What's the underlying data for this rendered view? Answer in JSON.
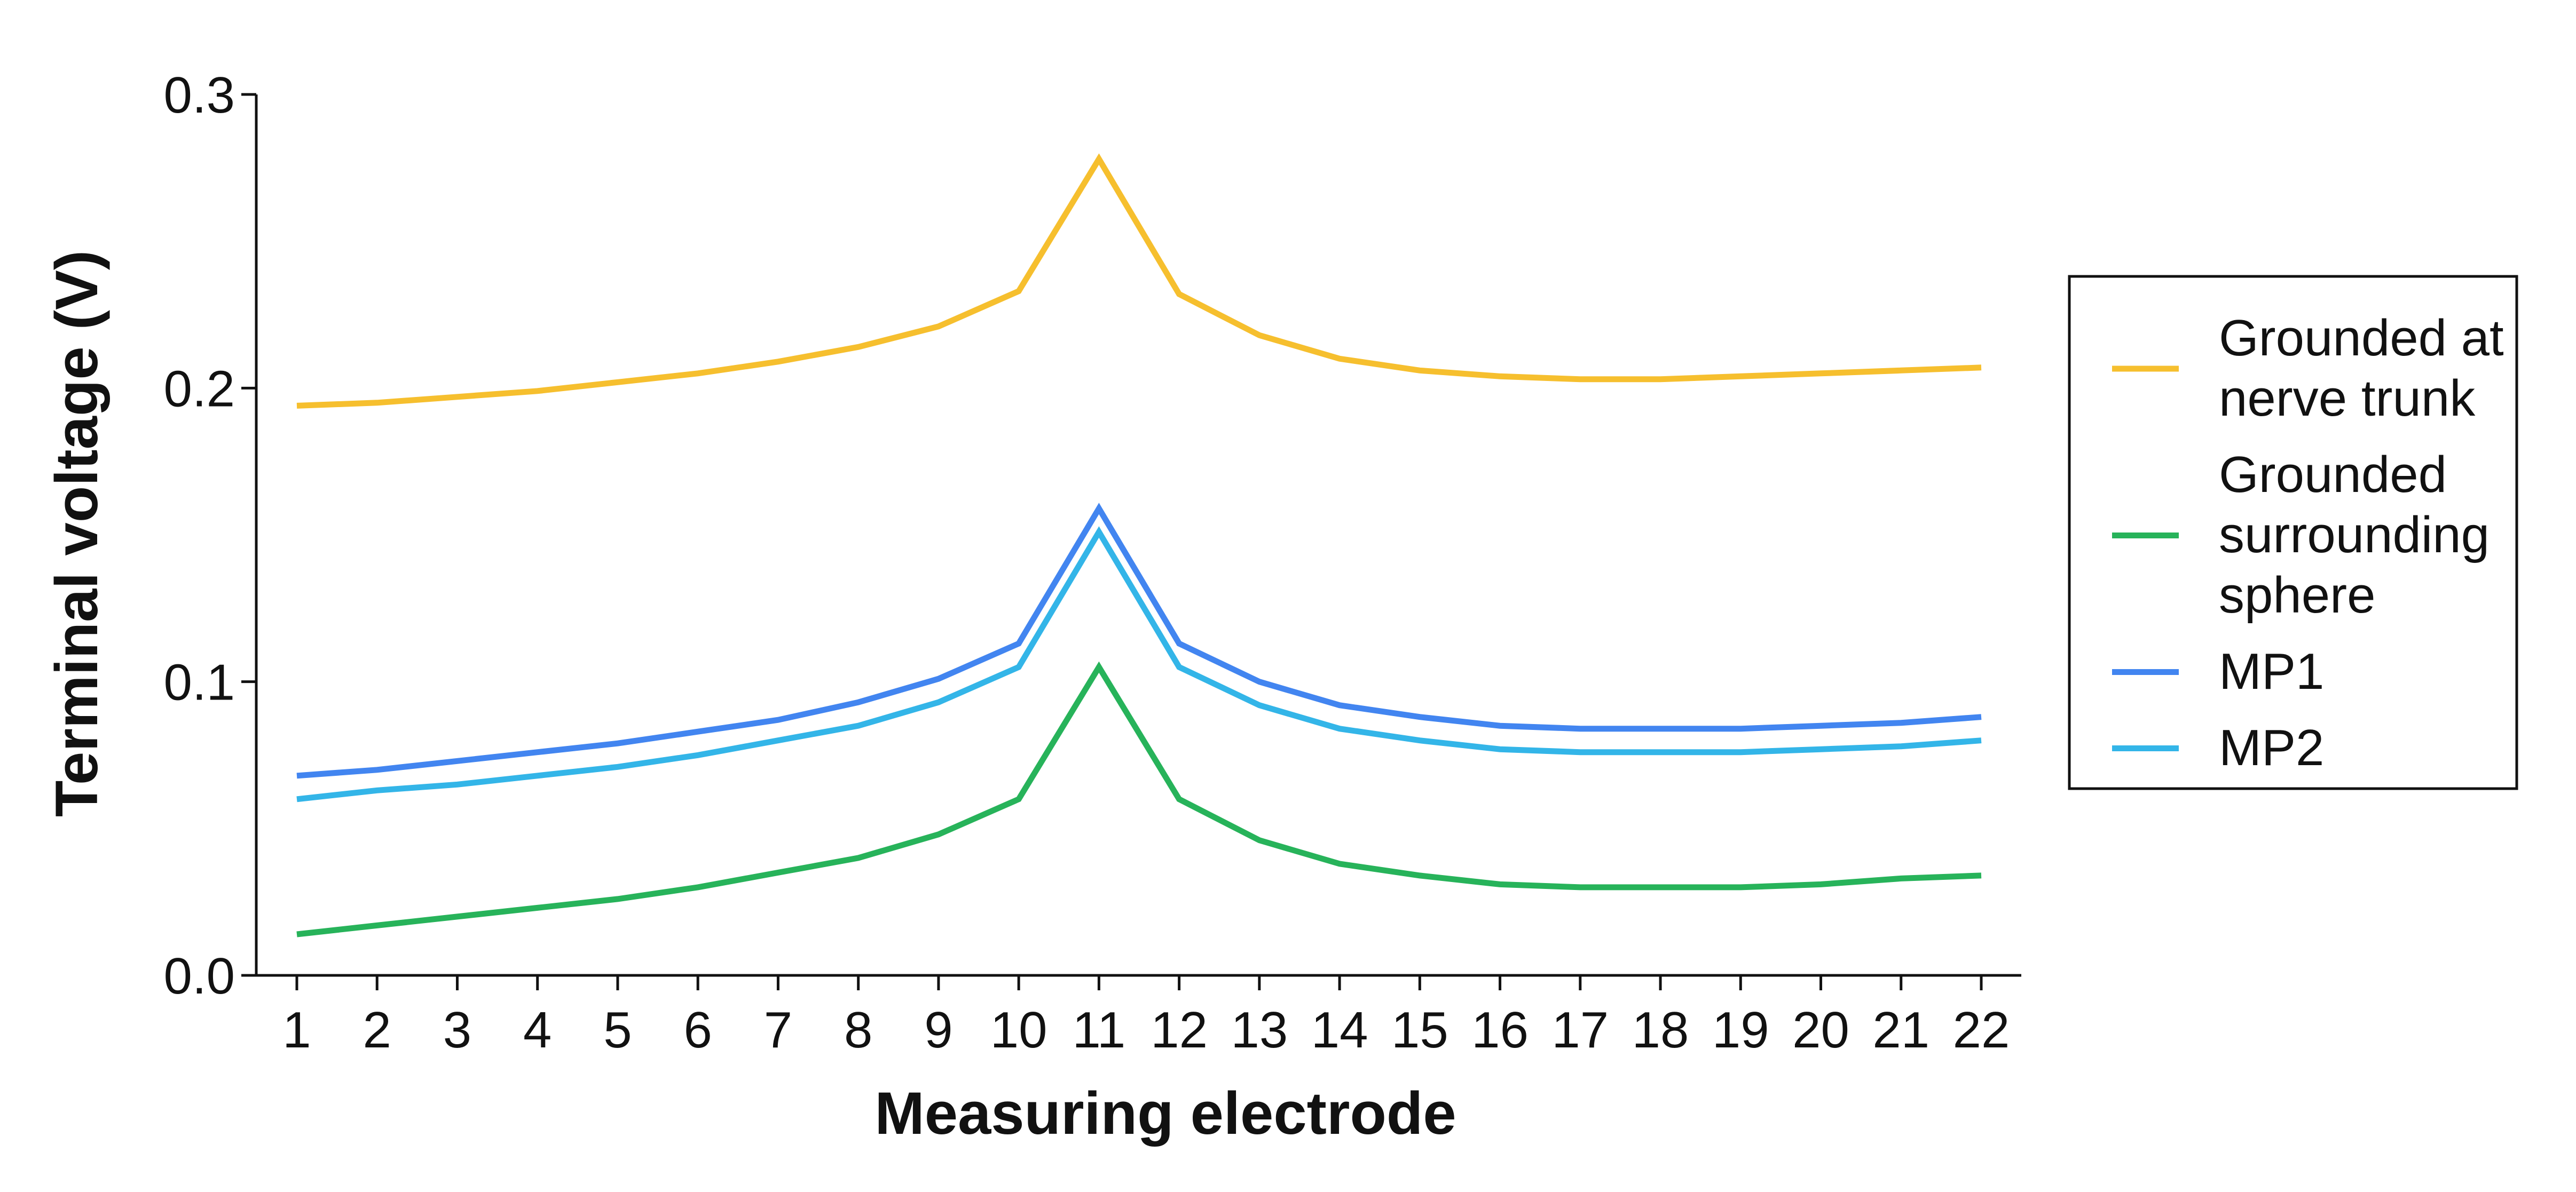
{
  "chart_data": {
    "type": "line",
    "title": "",
    "xlabel": "Measuring electrode",
    "ylabel": "Terminal voltage (V)",
    "x": [
      1,
      2,
      3,
      4,
      5,
      6,
      7,
      8,
      9,
      10,
      11,
      12,
      13,
      14,
      15,
      16,
      17,
      18,
      19,
      20,
      21,
      22
    ],
    "xlim": [
      1,
      22
    ],
    "ylim": [
      0,
      0.3
    ],
    "yticks": [
      0,
      0.1,
      0.2,
      0.3
    ],
    "ytick_labels": [
      "0.0",
      "0.1",
      "0.2",
      "0.3"
    ],
    "xtick_labels": [
      "1",
      "2",
      "3",
      "4",
      "5",
      "6",
      "7",
      "8",
      "9",
      "10",
      "11",
      "12",
      "13",
      "14",
      "15",
      "16",
      "17",
      "18",
      "19",
      "20",
      "21",
      "22"
    ],
    "grid": false,
    "legend_position": "right",
    "series": [
      {
        "name": "Grounded at nerve trunk",
        "legend_lines": [
          "Grounded at",
          "nerve trunk"
        ],
        "color": "#f6bf2e",
        "values": [
          0.194,
          0.195,
          0.197,
          0.199,
          0.202,
          0.205,
          0.209,
          0.214,
          0.221,
          0.233,
          0.278,
          0.232,
          0.218,
          0.21,
          0.206,
          0.204,
          0.203,
          0.203,
          0.204,
          0.205,
          0.206,
          0.207
        ]
      },
      {
        "name": "Grounded surrounding sphere",
        "legend_lines": [
          "Grounded",
          "surrounding",
          "sphere"
        ],
        "color": "#27b35a",
        "values": [
          0.014,
          0.017,
          0.02,
          0.023,
          0.026,
          0.03,
          0.035,
          0.04,
          0.048,
          0.06,
          0.105,
          0.06,
          0.046,
          0.038,
          0.034,
          0.031,
          0.03,
          0.03,
          0.03,
          0.031,
          0.033,
          0.034
        ]
      },
      {
        "name": "MP1",
        "legend_lines": [
          "MP1"
        ],
        "color": "#4285f0",
        "values": [
          0.068,
          0.07,
          0.073,
          0.076,
          0.079,
          0.083,
          0.087,
          0.093,
          0.101,
          0.113,
          0.159,
          0.113,
          0.1,
          0.092,
          0.088,
          0.085,
          0.084,
          0.084,
          0.084,
          0.085,
          0.086,
          0.088
        ]
      },
      {
        "name": "MP2",
        "legend_lines": [
          "MP2"
        ],
        "color": "#33b5e8",
        "values": [
          0.06,
          0.063,
          0.065,
          0.068,
          0.071,
          0.075,
          0.08,
          0.085,
          0.093,
          0.105,
          0.151,
          0.105,
          0.092,
          0.084,
          0.08,
          0.077,
          0.076,
          0.076,
          0.076,
          0.077,
          0.078,
          0.08
        ]
      }
    ]
  }
}
